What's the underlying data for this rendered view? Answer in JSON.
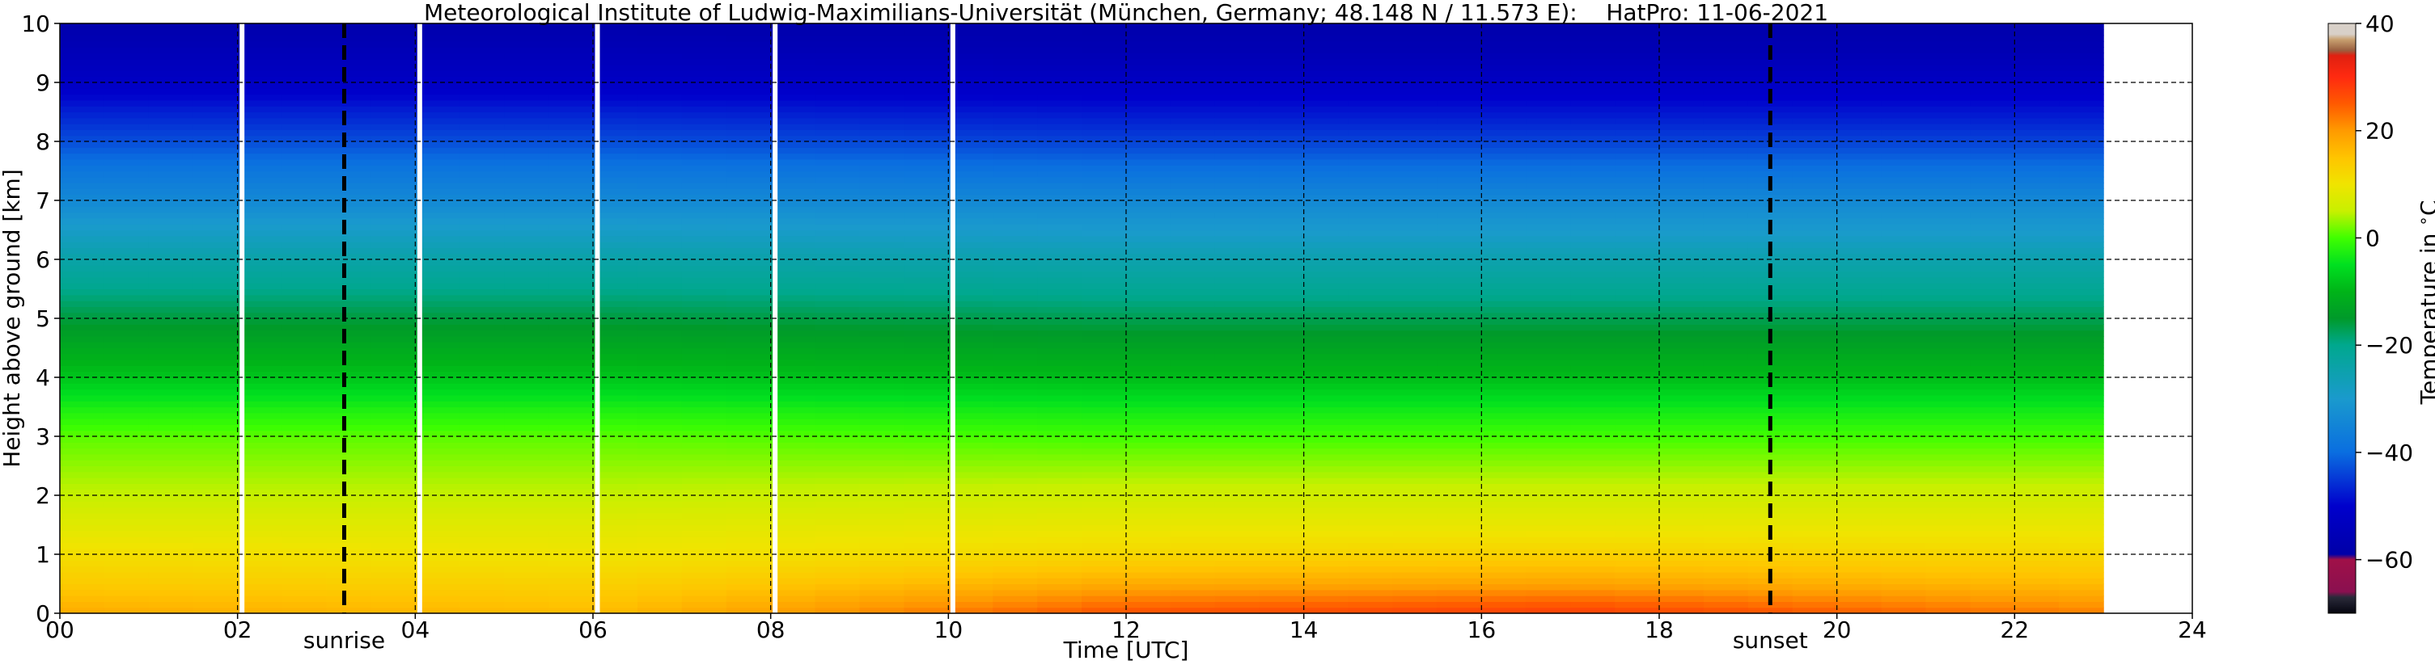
{
  "chart_data": {
    "type": "heatmap",
    "title": "Meteorological Institute of Ludwig-Maximilians-Universität (München, Germany; 48.148 N / 11.573 E):    HatPro: 11-06-2021",
    "xlabel": "Time [UTC]",
    "ylabel": "Height above ground [km]",
    "xlim": [
      0,
      24
    ],
    "ylim": [
      0,
      10
    ],
    "x_tick_labels": [
      "00",
      "02",
      "04",
      "06",
      "08",
      "10",
      "12",
      "14",
      "16",
      "18",
      "20",
      "22",
      "24"
    ],
    "y_tick_labels": [
      "0",
      "1",
      "2",
      "3",
      "4",
      "5",
      "6",
      "7",
      "8",
      "9",
      "10"
    ],
    "grid": true,
    "data_time_range": [
      0,
      23.0
    ],
    "heights_km": [
      0,
      0.5,
      1,
      1.5,
      2,
      2.5,
      3,
      3.5,
      4,
      4.5,
      5,
      5.5,
      6,
      6.5,
      7,
      7.5,
      8,
      8.5,
      9,
      9.5,
      10
    ],
    "temperature_profiles": [
      {
        "time": 0,
        "values": [
          18,
          14,
          11,
          8,
          5,
          3,
          1,
          -3,
          -8,
          -12,
          -16,
          -20,
          -24,
          -29,
          -34,
          -38,
          -43,
          -47,
          -52,
          -55,
          -58
        ]
      },
      {
        "time": 6,
        "values": [
          16,
          13,
          10,
          8,
          5,
          3,
          1,
          -3,
          -8,
          -12,
          -16,
          -20,
          -24,
          -29,
          -34,
          -38,
          -43,
          -47,
          -52,
          -55,
          -58
        ]
      },
      {
        "time": 12,
        "values": [
          26,
          18,
          12,
          9,
          6,
          3,
          0,
          -4,
          -9,
          -13,
          -17,
          -21,
          -25,
          -30,
          -34,
          -39,
          -44,
          -48,
          -52,
          -56,
          -58
        ]
      },
      {
        "time": 17,
        "values": [
          28,
          19,
          13,
          9,
          6,
          3,
          0,
          -4,
          -9,
          -13,
          -17,
          -21,
          -25,
          -30,
          -34,
          -39,
          -44,
          -48,
          -52,
          -56,
          -58
        ]
      },
      {
        "time": 23,
        "values": [
          22,
          16,
          12,
          9,
          6,
          3,
          0,
          -4,
          -9,
          -13,
          -17,
          -21,
          -25,
          -30,
          -34,
          -39,
          -44,
          -48,
          -52,
          -56,
          -58
        ]
      }
    ],
    "missing_data_times": [
      2.05,
      4.05,
      6.05,
      8.05,
      10.05
    ],
    "events": [
      {
        "name": "sunrise",
        "time": 3.2
      },
      {
        "name": "sunset",
        "time": 19.25
      }
    ],
    "colorbar": {
      "label": "Temperature in $^\\circ$C",
      "range": [
        -70,
        40
      ],
      "tick_values": [
        -60,
        -40,
        -20,
        0,
        20,
        40
      ],
      "tick_labels": [
        "−60",
        "−40",
        "−20",
        "0",
        "20",
        "40"
      ],
      "colors": [
        {
          "t": -70,
          "c": "#05050f"
        },
        {
          "t": -67,
          "c": "#2a2a3a"
        },
        {
          "t": -66,
          "c": "#8a1050"
        },
        {
          "t": -60,
          "c": "#a01048"
        },
        {
          "t": -59,
          "c": "#0000a8"
        },
        {
          "t": -50,
          "c": "#0000cc"
        },
        {
          "t": -40,
          "c": "#0a6ee0"
        },
        {
          "t": -30,
          "c": "#1a9acd"
        },
        {
          "t": -20,
          "c": "#00a88e"
        },
        {
          "t": -15,
          "c": "#009a2a"
        },
        {
          "t": -10,
          "c": "#00b418"
        },
        {
          "t": -5,
          "c": "#00e020"
        },
        {
          "t": 0,
          "c": "#40ff00"
        },
        {
          "t": 5,
          "c": "#c8f000"
        },
        {
          "t": 10,
          "c": "#f0e400"
        },
        {
          "t": 15,
          "c": "#ffc400"
        },
        {
          "t": 20,
          "c": "#ff9a00"
        },
        {
          "t": 25,
          "c": "#ff5a00"
        },
        {
          "t": 30,
          "c": "#ff2a10"
        },
        {
          "t": 34,
          "c": "#e02010"
        },
        {
          "t": 35,
          "c": "#9a6040"
        },
        {
          "t": 37,
          "c": "#c8a070"
        },
        {
          "t": 38,
          "c": "#d8d0c8"
        },
        {
          "t": 40,
          "c": "#d8d0c8"
        }
      ]
    }
  }
}
